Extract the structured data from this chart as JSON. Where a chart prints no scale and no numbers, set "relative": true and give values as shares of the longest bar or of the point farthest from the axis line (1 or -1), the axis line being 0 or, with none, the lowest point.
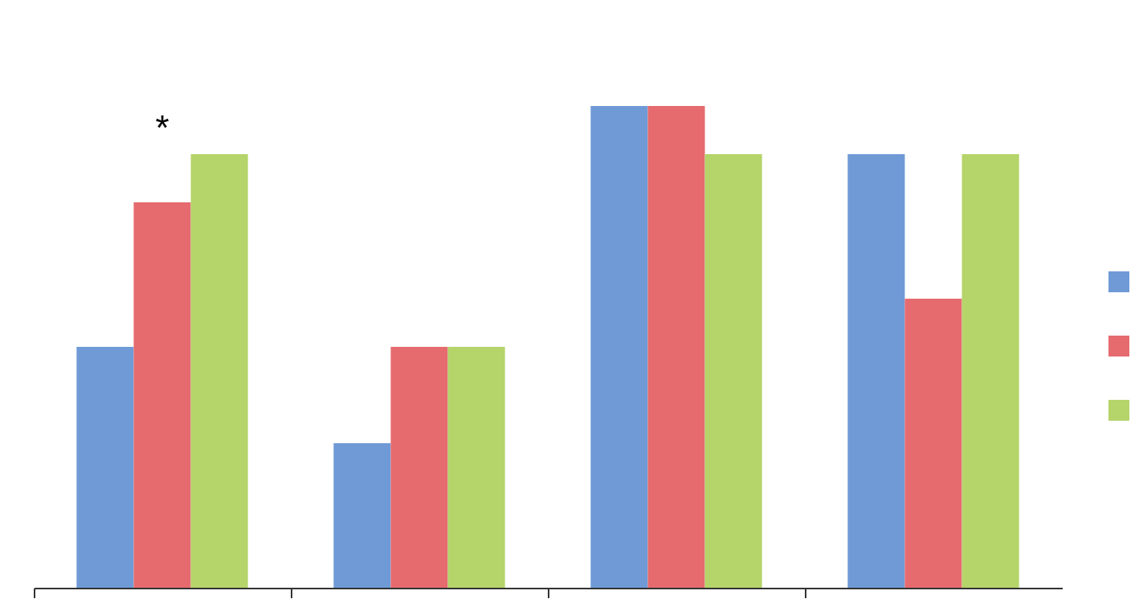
{
  "chart_data": {
    "type": "bar",
    "relative": true,
    "categories": [
      null,
      null,
      null,
      null
    ],
    "series": [
      {
        "color": "#6f9ad6",
        "values": [
          0.5,
          0.3,
          1,
          0.9
        ]
      },
      {
        "color": "#e56b6f",
        "values": [
          0.8,
          0.5,
          1,
          0.6
        ]
      },
      {
        "color": "#b5d46a",
        "values": [
          0.9,
          0.5,
          0.9,
          0.9
        ]
      }
    ],
    "annotations": [
      "*"
    ],
    "grid": false
  }
}
